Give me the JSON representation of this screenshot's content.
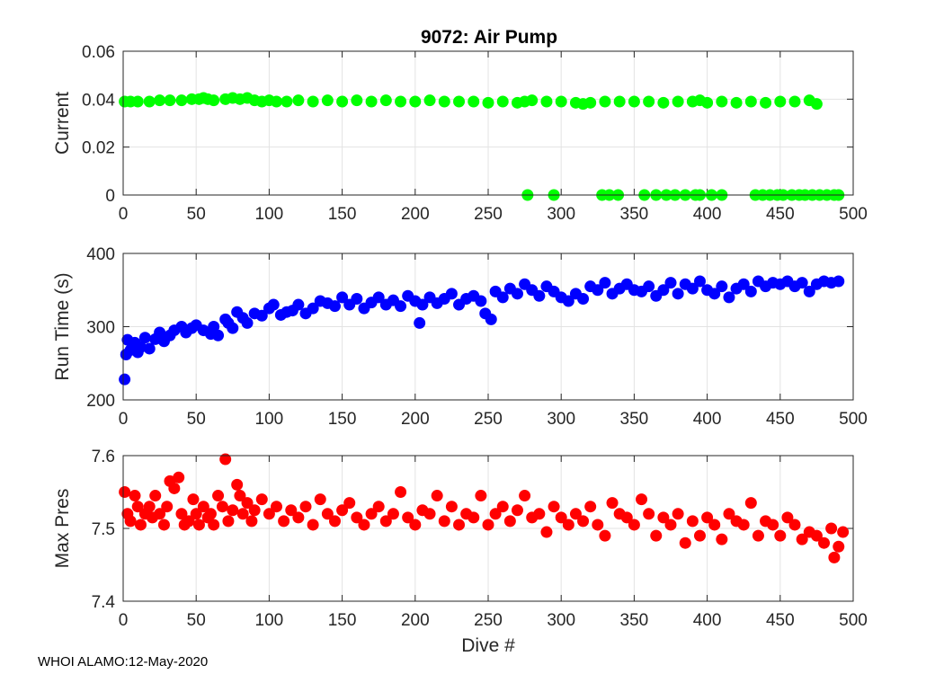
{
  "footer": "WHOI ALAMO:12-May-2020",
  "chart_data": [
    {
      "type": "scatter",
      "title": "9072: Air Pump",
      "xlabel": "",
      "ylabel": "Current",
      "xlim": [
        0,
        500
      ],
      "ylim": [
        0,
        0.06
      ],
      "xticks": [
        "0",
        "50",
        "100",
        "150",
        "200",
        "250",
        "300",
        "350",
        "400",
        "450",
        "500"
      ],
      "yticks": [
        "0",
        "0.02",
        "0.04",
        "0.06"
      ],
      "grid": true,
      "color": "#00ff00",
      "series": [
        {
          "x": [
            1,
            5,
            10,
            18,
            25,
            32,
            40,
            47,
            52,
            55,
            58,
            62,
            70,
            75,
            80,
            85,
            90,
            95,
            100,
            105,
            112,
            120,
            130,
            140,
            150,
            160,
            170,
            180,
            190,
            200,
            210,
            220,
            230,
            240,
            250,
            260,
            270,
            275,
            280,
            290,
            300,
            310,
            315,
            320,
            330,
            340,
            350,
            360,
            370,
            380,
            390,
            395,
            400,
            410,
            420,
            430,
            440,
            450,
            460,
            470,
            475,
            277,
            295,
            328,
            333,
            339,
            357,
            365,
            372,
            378,
            385,
            392,
            395,
            403,
            410,
            433,
            438,
            443,
            448,
            452,
            458,
            463,
            467,
            472,
            477,
            482,
            487,
            490
          ],
          "y": [
            0.039,
            0.039,
            0.039,
            0.039,
            0.0395,
            0.0395,
            0.0395,
            0.04,
            0.04,
            0.0405,
            0.04,
            0.0395,
            0.04,
            0.0405,
            0.04,
            0.0405,
            0.0395,
            0.039,
            0.0395,
            0.039,
            0.039,
            0.0395,
            0.039,
            0.0395,
            0.039,
            0.0395,
            0.039,
            0.0395,
            0.039,
            0.039,
            0.0395,
            0.039,
            0.039,
            0.039,
            0.0385,
            0.039,
            0.0385,
            0.039,
            0.0395,
            0.039,
            0.039,
            0.0385,
            0.038,
            0.0385,
            0.039,
            0.039,
            0.039,
            0.039,
            0.0385,
            0.039,
            0.039,
            0.0395,
            0.0385,
            0.039,
            0.0385,
            0.039,
            0.0385,
            0.039,
            0.039,
            0.0395,
            0.038,
            0,
            0,
            0,
            0,
            0,
            0,
            0,
            0,
            0,
            0,
            0,
            0,
            0,
            0,
            0,
            0,
            0,
            0,
            0,
            0,
            0,
            0,
            0,
            0,
            0,
            0,
            0
          ]
        }
      ]
    },
    {
      "type": "scatter",
      "title": "",
      "xlabel": "",
      "ylabel": "Run Time (s)",
      "xlim": [
        0,
        500
      ],
      "ylim": [
        200,
        400
      ],
      "xticks": [
        "0",
        "50",
        "100",
        "150",
        "200",
        "250",
        "300",
        "350",
        "400",
        "450",
        "500"
      ],
      "yticks": [
        "200",
        "300",
        "400"
      ],
      "grid": true,
      "color": "#0000ff",
      "series": [
        {
          "x": [
            1,
            2,
            3,
            5,
            8,
            10,
            12,
            15,
            18,
            22,
            25,
            28,
            32,
            35,
            40,
            43,
            47,
            50,
            55,
            60,
            62,
            65,
            70,
            72,
            75,
            78,
            82,
            85,
            90,
            95,
            100,
            103,
            108,
            112,
            116,
            120,
            125,
            130,
            135,
            140,
            145,
            150,
            155,
            160,
            165,
            170,
            175,
            180,
            185,
            190,
            195,
            200,
            203,
            205,
            210,
            215,
            220,
            225,
            230,
            235,
            240,
            245,
            248,
            252,
            255,
            260,
            265,
            270,
            275,
            280,
            285,
            290,
            295,
            300,
            305,
            310,
            315,
            320,
            325,
            330,
            335,
            340,
            345,
            350,
            355,
            360,
            365,
            370,
            375,
            380,
            385,
            390,
            395,
            400,
            405,
            410,
            415,
            420,
            425,
            430,
            435,
            440,
            445,
            450,
            455,
            460,
            465,
            470,
            475,
            480,
            485,
            490
          ],
          "y": [
            228,
            262,
            282,
            268,
            278,
            265,
            272,
            285,
            270,
            283,
            292,
            280,
            288,
            295,
            300,
            292,
            298,
            302,
            295,
            290,
            300,
            288,
            310,
            305,
            298,
            320,
            312,
            305,
            318,
            315,
            325,
            330,
            316,
            320,
            322,
            330,
            318,
            325,
            335,
            332,
            328,
            340,
            330,
            338,
            325,
            333,
            340,
            330,
            336,
            328,
            342,
            335,
            305,
            330,
            340,
            332,
            338,
            345,
            330,
            338,
            342,
            335,
            318,
            310,
            348,
            340,
            352,
            345,
            358,
            350,
            342,
            355,
            348,
            340,
            335,
            345,
            338,
            355,
            350,
            360,
            345,
            352,
            358,
            350,
            348,
            355,
            342,
            350,
            360,
            345,
            358,
            352,
            362,
            350,
            345,
            355,
            340,
            352,
            358,
            348,
            362,
            355,
            360,
            358,
            362,
            355,
            360,
            348,
            358,
            362,
            360,
            362
          ]
        }
      ]
    },
    {
      "type": "scatter",
      "title": "",
      "xlabel": "Dive #",
      "ylabel": "Max Pres",
      "xlim": [
        0,
        500
      ],
      "ylim": [
        7.4,
        7.6
      ],
      "xticks": [
        "0",
        "50",
        "100",
        "150",
        "200",
        "250",
        "300",
        "350",
        "400",
        "450",
        "500"
      ],
      "yticks": [
        "7.4",
        "7.5",
        "7.6"
      ],
      "grid": true,
      "color": "#ff0000",
      "series": [
        {
          "x": [
            1,
            3,
            5,
            8,
            10,
            12,
            15,
            18,
            20,
            22,
            25,
            28,
            30,
            32,
            35,
            38,
            40,
            42,
            45,
            48,
            50,
            52,
            55,
            58,
            60,
            62,
            65,
            68,
            70,
            72,
            75,
            78,
            80,
            82,
            85,
            88,
            90,
            95,
            100,
            105,
            110,
            115,
            120,
            125,
            130,
            135,
            140,
            145,
            150,
            155,
            160,
            165,
            170,
            175,
            180,
            185,
            190,
            195,
            200,
            205,
            210,
            215,
            220,
            225,
            230,
            235,
            240,
            245,
            250,
            255,
            260,
            265,
            270,
            275,
            280,
            285,
            290,
            295,
            300,
            305,
            310,
            315,
            320,
            325,
            330,
            335,
            340,
            345,
            350,
            355,
            360,
            365,
            370,
            375,
            380,
            385,
            390,
            395,
            400,
            405,
            410,
            415,
            420,
            425,
            430,
            435,
            440,
            445,
            450,
            455,
            460,
            465,
            470,
            475,
            480,
            485,
            487,
            490,
            493
          ],
          "y": [
            7.55,
            7.52,
            7.51,
            7.545,
            7.53,
            7.505,
            7.52,
            7.53,
            7.515,
            7.545,
            7.52,
            7.505,
            7.53,
            7.565,
            7.555,
            7.57,
            7.52,
            7.505,
            7.51,
            7.54,
            7.52,
            7.505,
            7.53,
            7.515,
            7.52,
            7.505,
            7.545,
            7.53,
            7.595,
            7.51,
            7.525,
            7.56,
            7.545,
            7.52,
            7.535,
            7.51,
            7.525,
            7.54,
            7.52,
            7.53,
            7.51,
            7.525,
            7.515,
            7.53,
            7.505,
            7.54,
            7.52,
            7.51,
            7.525,
            7.535,
            7.515,
            7.505,
            7.52,
            7.53,
            7.51,
            7.52,
            7.55,
            7.515,
            7.505,
            7.525,
            7.52,
            7.545,
            7.51,
            7.53,
            7.505,
            7.52,
            7.515,
            7.545,
            7.505,
            7.52,
            7.53,
            7.51,
            7.525,
            7.545,
            7.515,
            7.52,
            7.495,
            7.53,
            7.515,
            7.505,
            7.52,
            7.51,
            7.53,
            7.505,
            7.49,
            7.535,
            7.52,
            7.515,
            7.505,
            7.54,
            7.52,
            7.49,
            7.515,
            7.505,
            7.52,
            7.48,
            7.51,
            7.49,
            7.515,
            7.505,
            7.485,
            7.52,
            7.51,
            7.505,
            7.535,
            7.49,
            7.51,
            7.505,
            7.49,
            7.515,
            7.505,
            7.485,
            7.495,
            7.49,
            7.48,
            7.5,
            7.46,
            7.475,
            7.495
          ]
        }
      ]
    }
  ]
}
